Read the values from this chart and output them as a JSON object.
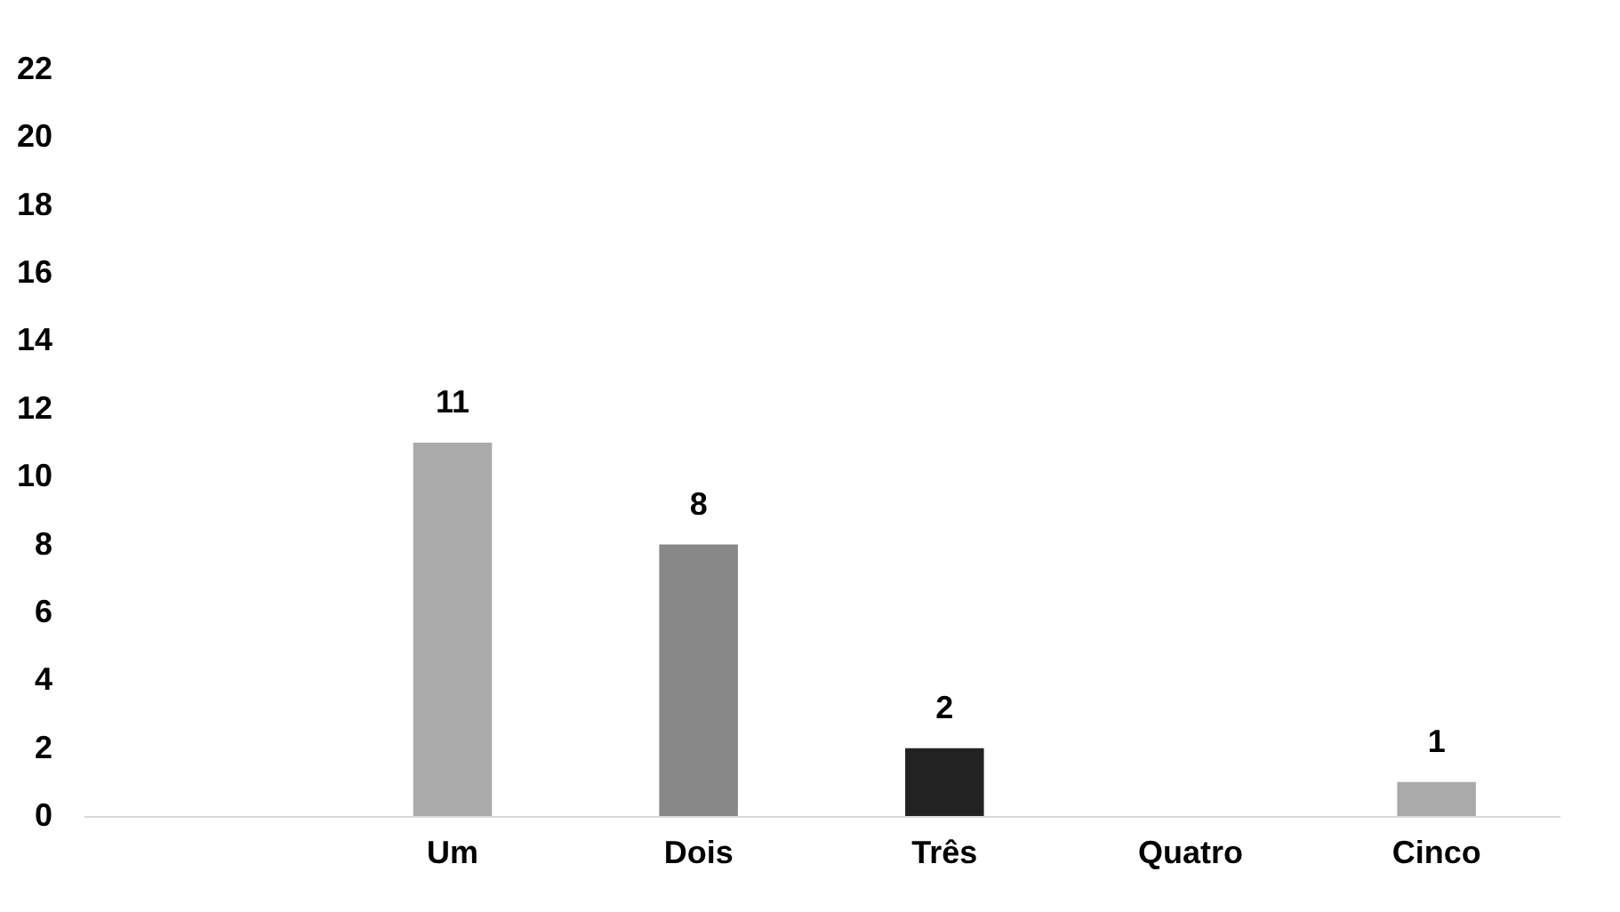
{
  "chart_data": {
    "type": "bar",
    "categories": [
      null,
      "Um",
      "Dois",
      "Três",
      "Quatro",
      "Cinco"
    ],
    "values": [
      null,
      11,
      8,
      2,
      null,
      1
    ],
    "colors": [
      "#aaaaaa",
      "#aaaaaa",
      "#888888",
      "#222222",
      "#aaaaaa",
      "#aaaaaa"
    ],
    "ylim": [
      0,
      22
    ],
    "yticks": [
      0,
      2,
      4,
      6,
      8,
      10,
      12,
      14,
      16,
      18,
      20,
      22
    ],
    "grid": false,
    "data_labels": true
  }
}
